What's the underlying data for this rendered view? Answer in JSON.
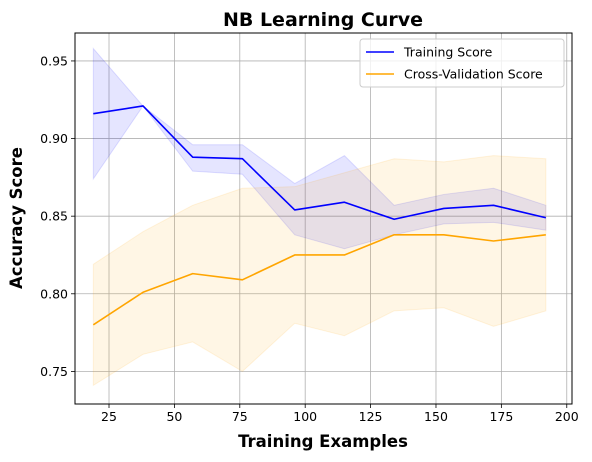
{
  "chart_data": {
    "type": "line",
    "title": "NB Learning Curve",
    "xlabel": "Training Examples",
    "ylabel": "Accuracy Score",
    "xlim": [
      12,
      202
    ],
    "ylim": [
      0.729,
      0.968
    ],
    "xticks": [
      25,
      50,
      75,
      100,
      125,
      150,
      175,
      200
    ],
    "yticks": [
      0.75,
      0.8,
      0.85,
      0.9,
      0.95
    ],
    "ytick_labels": [
      "0.75",
      "0.80",
      "0.85",
      "0.90",
      "0.95"
    ],
    "grid": true,
    "legend_position": "top-right",
    "x": [
      19,
      38,
      57,
      76,
      96,
      115,
      134,
      153,
      172,
      192
    ],
    "series": [
      {
        "name": "Training Score",
        "color": "#0000ff",
        "band_color": "#0000ff",
        "values": [
          0.916,
          0.921,
          0.888,
          0.887,
          0.854,
          0.859,
          0.848,
          0.855,
          0.857,
          0.849
        ],
        "upper": [
          0.958,
          0.921,
          0.896,
          0.896,
          0.871,
          0.889,
          0.857,
          0.864,
          0.868,
          0.857
        ],
        "lower": [
          0.874,
          0.921,
          0.879,
          0.877,
          0.838,
          0.829,
          0.838,
          0.845,
          0.846,
          0.841
        ]
      },
      {
        "name": "Cross-Validation Score",
        "color": "#ffa500",
        "band_color": "#ffa500",
        "values": [
          0.78,
          0.801,
          0.813,
          0.809,
          0.825,
          0.825,
          0.838,
          0.838,
          0.834,
          0.838
        ],
        "upper": [
          0.819,
          0.84,
          0.857,
          0.868,
          0.869,
          0.878,
          0.887,
          0.885,
          0.889,
          0.887
        ],
        "lower": [
          0.741,
          0.761,
          0.769,
          0.75,
          0.781,
          0.773,
          0.789,
          0.791,
          0.779,
          0.789
        ]
      }
    ]
  }
}
